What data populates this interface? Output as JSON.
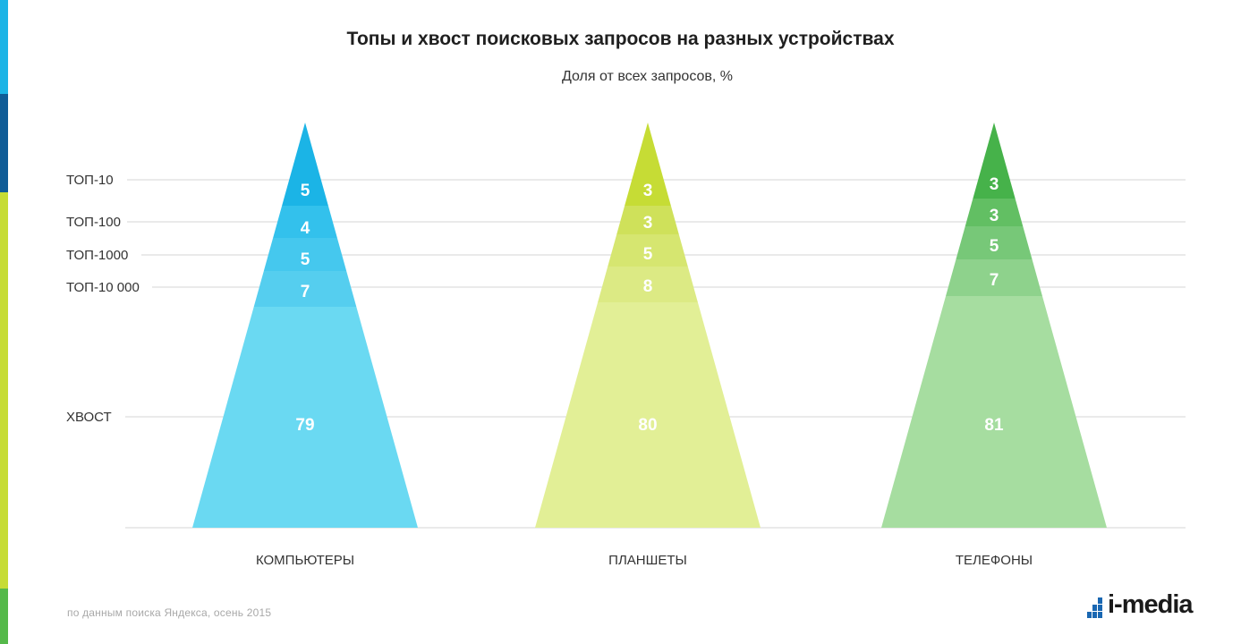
{
  "header": {
    "title": "Топы и хвост поисковых запросов на разных устройствах",
    "subtitle": "Доля от всех запросов, %"
  },
  "footer": {
    "source": "по данным поиска Яндекса, осень 2015",
    "logo_text": "i-media"
  },
  "colors": {
    "accent_strip": [
      "#1bb4e6",
      "#0f5c97",
      "#c6dc35",
      "#55b94a"
    ],
    "gridline": "#d6d6d6",
    "label_text": "#333333",
    "value_text": "#ffffff",
    "logo_mark": "#1967b2"
  },
  "chart_data": {
    "type": "pyramid",
    "title": "Топы и хвост поисковых запросов на разных устройствах",
    "subtitle": "Доля от всех запросов, %",
    "row_labels": [
      "ТОП-10",
      "ТОП-100",
      "ТОП-1000",
      "ТОП-10 000",
      "ХВОСТ"
    ],
    "unit": "%",
    "grid": true,
    "series": [
      {
        "name": "КОМПЬЮТЕРЫ",
        "values": [
          5,
          4,
          5,
          7,
          79
        ],
        "colors": [
          "#1bb4e6",
          "#33c1ec",
          "#45c8ee",
          "#55ceef",
          "#6ad9f2"
        ]
      },
      {
        "name": "ПЛАНШЕТЫ",
        "values": [
          3,
          3,
          5,
          8,
          80
        ],
        "colors": [
          "#c6dc35",
          "#cfe15a",
          "#d6e670",
          "#dcea84",
          "#e2ef96"
        ]
      },
      {
        "name": "ТЕЛЕФОНЫ",
        "values": [
          3,
          3,
          5,
          7,
          81
        ],
        "colors": [
          "#46b24a",
          "#62bf63",
          "#77c878",
          "#8ed28c",
          "#a6dda0"
        ]
      }
    ]
  }
}
